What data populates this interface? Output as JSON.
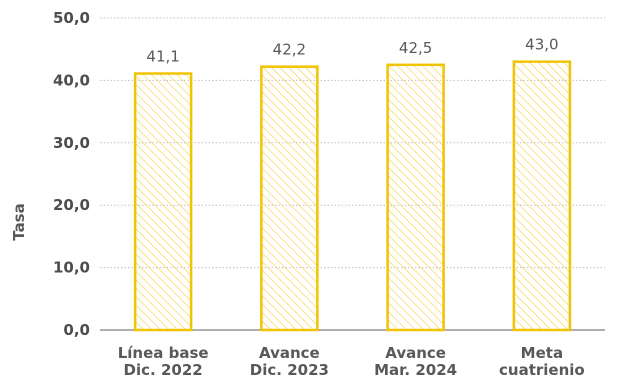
{
  "chart_data": {
    "type": "bar",
    "categories": [
      [
        "Línea base",
        "Dic. 2022"
      ],
      [
        "Avance",
        "Dic. 2023"
      ],
      [
        "Avance",
        "Mar. 2024"
      ],
      [
        "Meta",
        "cuatrienio"
      ]
    ],
    "values": [
      41.1,
      42.2,
      42.5,
      43.0
    ],
    "value_labels": [
      "41,1",
      "42,2",
      "42,5",
      "43,0"
    ],
    "title": "",
    "xlabel": "",
    "ylabel": "Tasa",
    "ylim": [
      0,
      50
    ],
    "yticks": [
      0,
      10,
      20,
      30,
      40,
      50
    ],
    "ytick_labels": [
      "0,0",
      "10,0",
      "20,0",
      "30,0",
      "40,0",
      "50,0"
    ],
    "grid": true,
    "legend": "none",
    "bar_color": "#f2c300",
    "hatch_color": "#f5cf3a",
    "grid_color": "#bfbfbf"
  }
}
